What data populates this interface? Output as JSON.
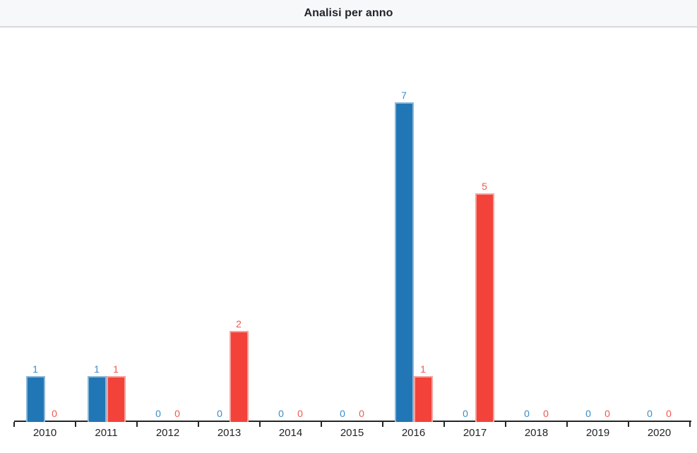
{
  "header": {
    "title": "Analisi per anno"
  },
  "colors": {
    "header_bg": "#f7f8fa",
    "header_border": "#d6d8db",
    "axis": "#262626",
    "tick_label": "#212529",
    "title_text": "#212529"
  },
  "chart_data": {
    "type": "bar",
    "title": "Analisi per anno",
    "categories": [
      "2010",
      "2011",
      "2012",
      "2013",
      "2014",
      "2015",
      "2016",
      "2017",
      "2018",
      "2019",
      "2020"
    ],
    "series": [
      {
        "name": "blue-series",
        "color": "#2176b5",
        "border_color": "#8ab7d8",
        "label_color": "#3a8cc8",
        "values": [
          1,
          1,
          0,
          0,
          0,
          0,
          7,
          0,
          0,
          0,
          0
        ]
      },
      {
        "name": "red-series",
        "color": "#f2423a",
        "border_color": "#f8a29b",
        "label_color": "#f3564e",
        "values": [
          0,
          1,
          0,
          2,
          0,
          0,
          1,
          5,
          0,
          0,
          0
        ]
      }
    ],
    "xlabel": "",
    "ylabel": "",
    "ylim": [
      0,
      7
    ],
    "y_axis_visible": false,
    "grid": false,
    "legend_position": "none",
    "data_labels": "shown above each bar, colored per series"
  }
}
